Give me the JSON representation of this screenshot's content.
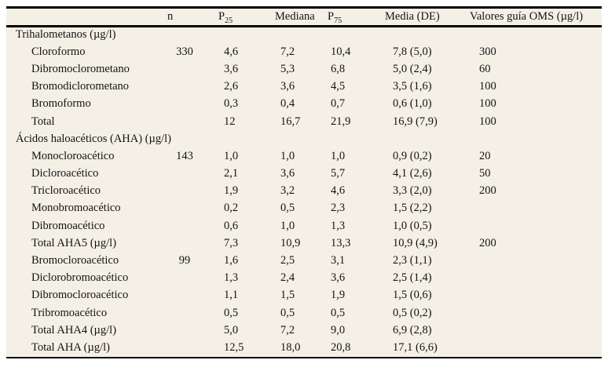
{
  "colors": {
    "page_background": "#ffffff",
    "table_background": "#f4f0e6",
    "rule": "#000000",
    "text": "#131313"
  },
  "table": {
    "header": {
      "parameter": "",
      "n": "n",
      "p_base": "P",
      "p25_sub": "25",
      "mediana": "Mediana",
      "p75_sub": "75",
      "media": "Media (DE)",
      "oms": "Valores guía OMS (µg/l)"
    },
    "rows": [
      {
        "type": "section",
        "label": "Trihalometanos (µg/l)",
        "n": "",
        "p25": "",
        "mediana": "",
        "p75": "",
        "media": "",
        "oms": ""
      },
      {
        "type": "item",
        "label": "Cloroformo",
        "n": "330",
        "p25": "4,6",
        "mediana": "7,2",
        "p75": "10,4",
        "media": "7,8 (5,0)",
        "oms": "300"
      },
      {
        "type": "item",
        "label": "Dibromoclorometano",
        "n": "",
        "p25": "3,6",
        "mediana": "5,3",
        "p75": "6,8",
        "media": "5,0 (2,4)",
        "oms": "60"
      },
      {
        "type": "item",
        "label": "Bromodiclorometano",
        "n": "",
        "p25": "2,6",
        "mediana": "3,6",
        "p75": "4,5",
        "media": "3,5 (1,6)",
        "oms": "100"
      },
      {
        "type": "item",
        "label": "Bromoformo",
        "n": "",
        "p25": "0,3",
        "mediana": "0,4",
        "p75": "0,7",
        "media": "0,6 (1,0)",
        "oms": "100"
      },
      {
        "type": "item",
        "label": "Total",
        "n": "",
        "p25": "12",
        "mediana": "16,7",
        "p75": "21,9",
        "media": "16,9 (7,9)",
        "oms": "100"
      },
      {
        "type": "section",
        "label": "Ácidos haloacéticos (AHA) (µg/l)",
        "n": "",
        "p25": "",
        "mediana": "",
        "p75": "",
        "media": "",
        "oms": ""
      },
      {
        "type": "item",
        "label": "Monocloroacético",
        "n": "143",
        "p25": "1,0",
        "mediana": "1,0",
        "p75": "1,0",
        "media": "0,9 (0,2)",
        "oms": "20"
      },
      {
        "type": "item",
        "label": "Dicloroacético",
        "n": "",
        "p25": "2,1",
        "mediana": "3,6",
        "p75": "5,7",
        "media": "4,1 (2,6)",
        "oms": "50"
      },
      {
        "type": "item",
        "label": "Tricloroacético",
        "n": "",
        "p25": "1,9",
        "mediana": "3,2",
        "p75": "4,6",
        "media": "3,3 (2,0)",
        "oms": "200"
      },
      {
        "type": "item",
        "label": "Monobromoacético",
        "n": "",
        "p25": "0,2",
        "mediana": "0,5",
        "p75": "2,3",
        "media": "1,5 (2,2)",
        "oms": ""
      },
      {
        "type": "item",
        "label": "Dibromoacético",
        "n": "",
        "p25": "0,6",
        "mediana": "1,0",
        "p75": "1,3",
        "media": "1,0 (0,5)",
        "oms": ""
      },
      {
        "type": "item",
        "label": "Total AHA5 (µg/l)",
        "n": "",
        "p25": "7,3",
        "mediana": "10,9",
        "p75": "13,3",
        "media": "10,9 (4,9)",
        "oms": "200"
      },
      {
        "type": "item",
        "label": "Bromocloroacético",
        "n": "99",
        "p25": "1,6",
        "mediana": "2,5",
        "p75": "3,1",
        "media": "2,3 (1,1)",
        "oms": ""
      },
      {
        "type": "item",
        "label": "Diclorobromoacético",
        "n": "",
        "p25": "1,3",
        "mediana": "2,4",
        "p75": "3,6",
        "media": "2,5 (1,4)",
        "oms": ""
      },
      {
        "type": "item",
        "label": "Dibromocloroacético",
        "n": "",
        "p25": "1,1",
        "mediana": "1,5",
        "p75": "1,9",
        "media": "1,5 (0,6)",
        "oms": ""
      },
      {
        "type": "item",
        "label": "Tribromoacético",
        "n": "",
        "p25": "0,5",
        "mediana": "0,5",
        "p75": "0,5",
        "media": "0,5 (0,2)",
        "oms": ""
      },
      {
        "type": "item",
        "label": "Total AHA4 (µg/l)",
        "n": "",
        "p25": "5,0",
        "mediana": "7,2",
        "p75": "9,0",
        "media": "6,9 (2,8)",
        "oms": ""
      },
      {
        "type": "item",
        "label": "Total AHA (µg/l)",
        "n": "",
        "p25": "12,5",
        "mediana": "18,0",
        "p75": "20,8",
        "media": "17,1 (6,6)",
        "oms": ""
      }
    ]
  }
}
